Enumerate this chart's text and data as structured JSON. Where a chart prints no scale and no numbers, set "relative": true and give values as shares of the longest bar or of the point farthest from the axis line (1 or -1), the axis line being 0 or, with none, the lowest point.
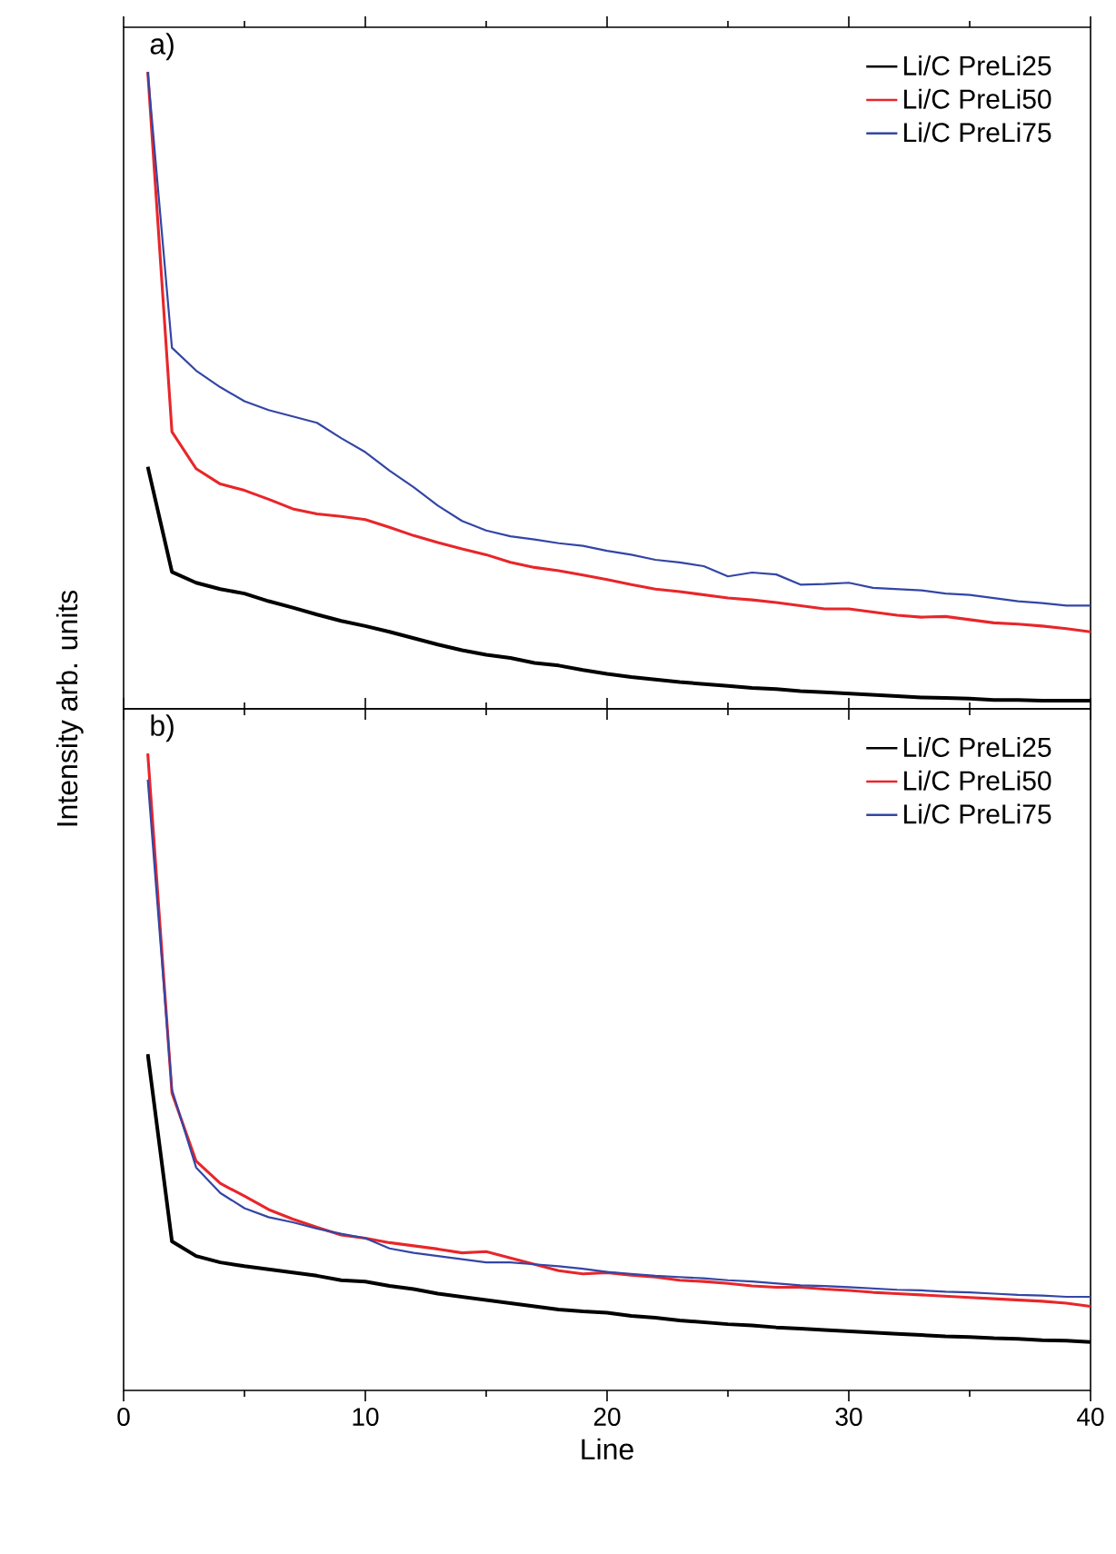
{
  "chart_data": [
    {
      "type": "line",
      "title": "a)",
      "ylabel": "Intensity arb. units",
      "relative": true,
      "legend": "top right",
      "tick_labels": false,
      "xlim": [
        0,
        40
      ],
      "xticks": [
        0,
        10,
        20,
        30,
        40
      ],
      "x": [
        1,
        2,
        3,
        4,
        5,
        6,
        7,
        8,
        9,
        10,
        11,
        12,
        13,
        14,
        15,
        16,
        17,
        18,
        19,
        20,
        21,
        22,
        23,
        24,
        25,
        26,
        27,
        28,
        29,
        30,
        31,
        32,
        33,
        34,
        35,
        36,
        37,
        38,
        39,
        40
      ],
      "series": [
        {
          "name": "Li/C PreLi25",
          "color": "#000000",
          "values": [
            0.38,
            0.215,
            0.198,
            0.188,
            0.181,
            0.169,
            0.159,
            0.148,
            0.138,
            0.13,
            0.121,
            0.111,
            0.101,
            0.092,
            0.085,
            0.08,
            0.072,
            0.068,
            0.061,
            0.055,
            0.05,
            0.046,
            0.042,
            0.039,
            0.036,
            0.033,
            0.031,
            0.028,
            0.026,
            0.024,
            0.022,
            0.02,
            0.018,
            0.017,
            0.016,
            0.014,
            0.014,
            0.013,
            0.013,
            0.013
          ]
        },
        {
          "name": "Li/C PreLi50",
          "color": "#e8262a",
          "values": [
            1.0,
            0.435,
            0.377,
            0.353,
            0.343,
            0.329,
            0.314,
            0.306,
            0.302,
            0.297,
            0.285,
            0.272,
            0.261,
            0.251,
            0.242,
            0.23,
            0.222,
            0.217,
            0.21,
            0.203,
            0.195,
            0.188,
            0.184,
            0.179,
            0.174,
            0.171,
            0.167,
            0.162,
            0.157,
            0.157,
            0.152,
            0.147,
            0.144,
            0.145,
            0.14,
            0.135,
            0.133,
            0.13,
            0.126,
            0.121
          ]
        },
        {
          "name": "Li/C PreLi75",
          "color": "#3346a5",
          "values": [
            1.0,
            0.567,
            0.531,
            0.505,
            0.483,
            0.469,
            0.459,
            0.449,
            0.425,
            0.403,
            0.374,
            0.348,
            0.319,
            0.295,
            0.28,
            0.271,
            0.266,
            0.26,
            0.256,
            0.248,
            0.242,
            0.234,
            0.23,
            0.224,
            0.208,
            0.214,
            0.211,
            0.195,
            0.196,
            0.198,
            0.19,
            0.188,
            0.186,
            0.181,
            0.179,
            0.174,
            0.169,
            0.166,
            0.162,
            0.162
          ]
        }
      ]
    },
    {
      "type": "line",
      "title": "b)",
      "xlabel": "Line",
      "relative": true,
      "legend": "top right",
      "tick_labels": "x",
      "xlim": [
        0,
        40
      ],
      "xticks": [
        0,
        10,
        20,
        30,
        40
      ],
      "x": [
        1,
        2,
        3,
        4,
        5,
        6,
        7,
        8,
        9,
        10,
        11,
        12,
        13,
        14,
        15,
        16,
        17,
        18,
        19,
        20,
        21,
        22,
        23,
        24,
        25,
        26,
        27,
        28,
        29,
        30,
        31,
        32,
        33,
        34,
        35,
        36,
        37,
        38,
        39,
        40
      ],
      "series": [
        {
          "name": "Li/C PreLi25",
          "color": "#000000",
          "values": [
            0.528,
            0.234,
            0.211,
            0.201,
            0.195,
            0.19,
            0.185,
            0.18,
            0.173,
            0.171,
            0.164,
            0.159,
            0.152,
            0.147,
            0.142,
            0.137,
            0.132,
            0.127,
            0.124,
            0.122,
            0.117,
            0.114,
            0.11,
            0.107,
            0.104,
            0.102,
            0.099,
            0.097,
            0.095,
            0.093,
            0.091,
            0.089,
            0.087,
            0.085,
            0.084,
            0.082,
            0.081,
            0.079,
            0.078,
            0.076
          ]
        },
        {
          "name": "Li/C PreLi50",
          "color": "#e8262a",
          "values": [
            1.0,
            0.467,
            0.36,
            0.325,
            0.305,
            0.284,
            0.269,
            0.256,
            0.244,
            0.239,
            0.232,
            0.227,
            0.222,
            0.216,
            0.218,
            0.208,
            0.198,
            0.188,
            0.183,
            0.185,
            0.181,
            0.178,
            0.173,
            0.171,
            0.168,
            0.164,
            0.162,
            0.162,
            0.159,
            0.157,
            0.154,
            0.152,
            0.15,
            0.148,
            0.146,
            0.144,
            0.142,
            0.14,
            0.137,
            0.132
          ]
        },
        {
          "name": "Li/C PreLi75",
          "color": "#3346a5",
          "values": [
            0.959,
            0.472,
            0.35,
            0.31,
            0.286,
            0.272,
            0.264,
            0.254,
            0.246,
            0.239,
            0.223,
            0.216,
            0.211,
            0.206,
            0.201,
            0.201,
            0.198,
            0.195,
            0.191,
            0.186,
            0.183,
            0.18,
            0.178,
            0.176,
            0.173,
            0.171,
            0.168,
            0.165,
            0.164,
            0.162,
            0.16,
            0.158,
            0.157,
            0.155,
            0.154,
            0.152,
            0.15,
            0.149,
            0.147,
            0.147
          ]
        }
      ]
    }
  ]
}
